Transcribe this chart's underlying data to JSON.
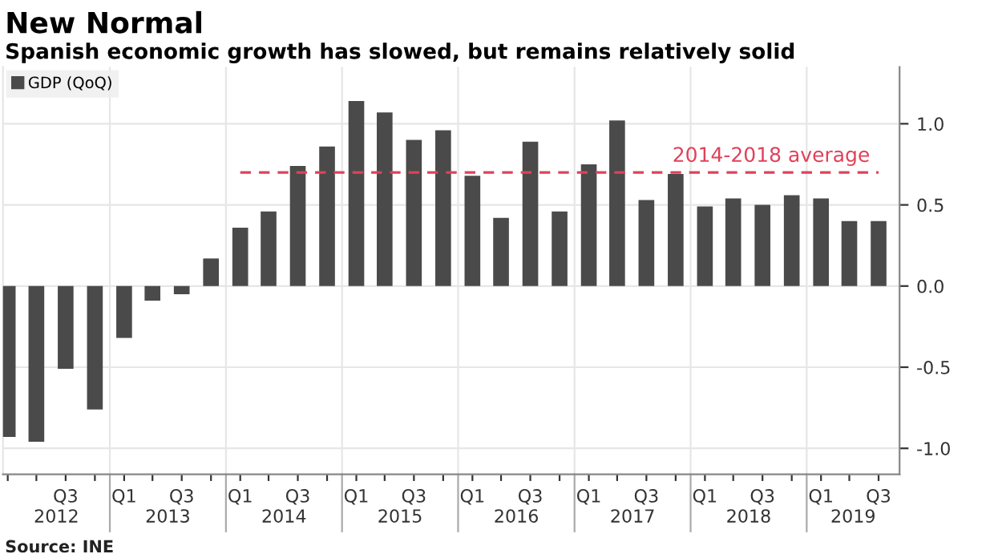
{
  "chart_data": {
    "type": "bar",
    "title": "New Normal",
    "subtitle": "Spanish economic growth has slowed, but remains relatively solid",
    "x": [
      "2012-02-15",
      "2012-05-15",
      "2012-08-15",
      "2012-11-15",
      "2013-02-15",
      "2013-05-15",
      "2013-08-15",
      "2013-11-15",
      "2014-02-15",
      "2014-05-15",
      "2014-08-15",
      "2014-11-15",
      "2015-02-15",
      "2015-05-15",
      "2015-08-15",
      "2015-11-15",
      "2016-02-15",
      "2016-05-15",
      "2016-08-15",
      "2016-11-15",
      "2017-02-15",
      "2017-05-15",
      "2017-08-15",
      "2017-11-15",
      "2018-02-15",
      "2018-05-15",
      "2018-08-15",
      "2018-11-15",
      "2019-02-15",
      "2019-05-15",
      "2019-08-15"
    ],
    "series": [
      {
        "name": "GDP (QoQ)",
        "color": "#4a4a4a",
        "values": [
          -0.93,
          -0.96,
          -0.51,
          -0.76,
          -0.32,
          -0.09,
          -0.05,
          0.17,
          0.36,
          0.46,
          0.74,
          0.86,
          1.14,
          1.07,
          0.9,
          0.96,
          0.68,
          0.42,
          0.89,
          0.46,
          0.75,
          1.02,
          0.53,
          0.69,
          0.49,
          0.54,
          0.5,
          0.56,
          0.54,
          0.4,
          0.4
        ]
      },
      {
        "type": "line",
        "name": "2014-2018 average",
        "color": "#e0415a",
        "line_style": "dashed",
        "values": [
          null,
          null,
          null,
          null,
          null,
          null,
          null,
          null,
          0.7,
          0.7,
          0.7,
          0.7,
          0.7,
          0.7,
          0.7,
          0.7,
          0.7,
          0.7,
          0.7,
          0.7,
          0.7,
          0.7,
          0.7,
          0.7,
          0.7,
          0.7,
          0.7,
          0.7,
          0.7,
          0.7,
          0.7
        ]
      }
    ],
    "xlim": [
      "2012-01-31",
      "2019-10-20"
    ],
    "xticks": [
      {
        "value": "2012-02-15",
        "label": null
      },
      {
        "value": "2012-05-15",
        "label": null
      },
      {
        "value": "2012-08-15",
        "label": "Q3"
      },
      {
        "value": "2012-11-15",
        "label": null
      },
      {
        "value": "2013-02-15",
        "label": "Q1"
      },
      {
        "value": "2013-05-15",
        "label": null
      },
      {
        "value": "2013-08-15",
        "label": "Q3"
      },
      {
        "value": "2013-11-15",
        "label": null
      },
      {
        "value": "2014-02-15",
        "label": "Q1"
      },
      {
        "value": "2014-05-15",
        "label": null
      },
      {
        "value": "2014-08-15",
        "label": "Q3"
      },
      {
        "value": "2014-11-15",
        "label": null
      },
      {
        "value": "2015-02-15",
        "label": "Q1"
      },
      {
        "value": "2015-05-15",
        "label": null
      },
      {
        "value": "2015-08-15",
        "label": "Q3"
      },
      {
        "value": "2015-11-15",
        "label": null
      },
      {
        "value": "2016-02-15",
        "label": "Q1"
      },
      {
        "value": "2016-05-15",
        "label": null
      },
      {
        "value": "2016-08-15",
        "label": "Q3"
      },
      {
        "value": "2016-11-15",
        "label": null
      },
      {
        "value": "2017-02-15",
        "label": "Q1"
      },
      {
        "value": "2017-05-15",
        "label": null
      },
      {
        "value": "2017-08-15",
        "label": "Q3"
      },
      {
        "value": "2017-11-15",
        "label": null
      },
      {
        "value": "2018-02-15",
        "label": "Q1"
      },
      {
        "value": "2018-05-15",
        "label": null
      },
      {
        "value": "2018-08-15",
        "label": "Q3"
      },
      {
        "value": "2018-11-15",
        "label": null
      },
      {
        "value": "2019-02-15",
        "label": "Q1"
      },
      {
        "value": "2019-05-15",
        "label": null
      },
      {
        "value": "2019-08-15",
        "label": "Q3"
      }
    ],
    "ylim": [
      -1.16,
      1.35
    ],
    "yticks": [
      {
        "value": -1.0,
        "label": "-1.0"
      },
      -0.5,
      {
        "value": 0.0,
        "label": "0.0"
      },
      0.5,
      {
        "value": 1.0,
        "label": "1.0"
      }
    ],
    "grid": "y",
    "legend": "top left",
    "annotations": [
      "2012",
      "2013",
      "2014",
      "2015",
      "2016",
      "2017",
      "2018",
      "2019",
      "Source: INE"
    ]
  }
}
